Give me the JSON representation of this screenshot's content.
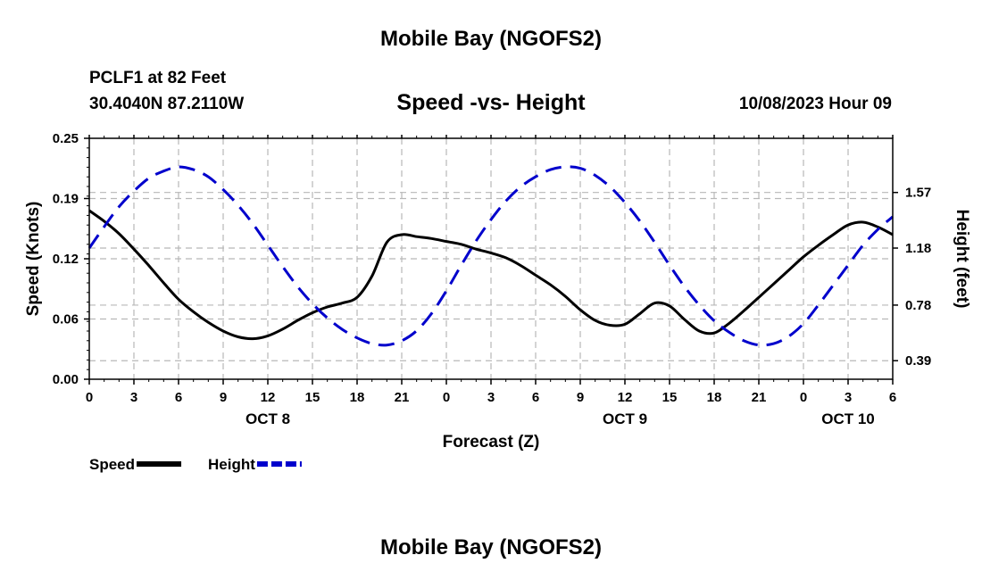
{
  "header": {
    "title": "Mobile Bay (NGOFS2)",
    "station": "PCLF1 at 82 Feet",
    "coords": "30.4040N  87.2110W",
    "date": "10/08/2023 Hour 09",
    "footer_title": "Mobile Bay (NGOFS2)"
  },
  "chart_data": {
    "type": "line",
    "subtitle": "Speed -vs- Height",
    "xlabel": "Forecast (Z)",
    "ylabel_left": "Speed (Knots)",
    "ylabel_right": "Height (feet)",
    "x_range_hours": [
      0,
      54
    ],
    "x_tick_labels": [
      "0",
      "3",
      "6",
      "9",
      "12",
      "15",
      "18",
      "21",
      "0",
      "3",
      "6",
      "9",
      "12",
      "15",
      "18",
      "21",
      "0",
      "3",
      "6"
    ],
    "day_labels": [
      {
        "label": "OCT 8",
        "hour": 12
      },
      {
        "label": "OCT 9",
        "hour": 36
      },
      {
        "label": "OCT 10",
        "hour": 51
      }
    ],
    "ylim_left": [
      0,
      0.25
    ],
    "yticks_left": [
      "0.00",
      "0.06",
      "0.12",
      "0.19",
      "0.25"
    ],
    "yticks_left_values": [
      0,
      0.0625,
      0.125,
      0.1875,
      0.25
    ],
    "ylim_right": [
      0.26,
      1.95
    ],
    "yticks_right": [
      "0.39",
      "0.78",
      "1.18",
      "1.57"
    ],
    "yticks_right_values": [
      0.39,
      0.78,
      1.18,
      1.57
    ],
    "grid": true,
    "series": [
      {
        "name": "Speed",
        "color": "#000000",
        "dash": "solid",
        "axis": "left",
        "x": [
          0,
          1,
          2,
          3,
          4,
          5,
          6,
          7,
          8,
          9,
          10,
          11,
          12,
          13,
          14,
          15,
          16,
          17,
          18,
          19,
          20,
          21,
          22,
          23,
          24,
          25,
          26,
          27,
          28,
          29,
          30,
          31,
          32,
          33,
          34,
          35,
          36,
          37,
          38,
          39,
          40,
          41,
          42,
          43,
          44,
          45,
          46,
          47,
          48,
          49,
          50,
          51,
          52,
          53,
          54
        ],
        "values": [
          0.175,
          0.164,
          0.151,
          0.135,
          0.118,
          0.1,
          0.083,
          0.07,
          0.059,
          0.05,
          0.044,
          0.042,
          0.045,
          0.052,
          0.061,
          0.069,
          0.075,
          0.079,
          0.085,
          0.107,
          0.142,
          0.15,
          0.148,
          0.146,
          0.143,
          0.14,
          0.135,
          0.131,
          0.126,
          0.118,
          0.108,
          0.098,
          0.086,
          0.072,
          0.061,
          0.056,
          0.057,
          0.068,
          0.079,
          0.076,
          0.062,
          0.05,
          0.048,
          0.058,
          0.071,
          0.085,
          0.099,
          0.113,
          0.127,
          0.139,
          0.15,
          0.16,
          0.163,
          0.158,
          0.15
        ]
      },
      {
        "name": "Height",
        "color": "#0000cc",
        "dash": "dashed",
        "axis": "right",
        "x": [
          0,
          1,
          2,
          3,
          4,
          5,
          6,
          7,
          8,
          9,
          10,
          11,
          12,
          13,
          14,
          15,
          16,
          17,
          18,
          19,
          20,
          21,
          22,
          23,
          24,
          25,
          26,
          27,
          28,
          29,
          30,
          31,
          32,
          33,
          34,
          35,
          36,
          37,
          38,
          39,
          40,
          41,
          42,
          43,
          44,
          45,
          46,
          47,
          48,
          49,
          50,
          51,
          52,
          53,
          54
        ],
        "values": [
          1.18,
          1.33,
          1.47,
          1.58,
          1.67,
          1.72,
          1.75,
          1.73,
          1.68,
          1.59,
          1.48,
          1.35,
          1.2,
          1.05,
          0.91,
          0.79,
          0.69,
          0.61,
          0.55,
          0.51,
          0.5,
          0.53,
          0.6,
          0.72,
          0.88,
          1.06,
          1.23,
          1.38,
          1.51,
          1.61,
          1.68,
          1.73,
          1.75,
          1.74,
          1.69,
          1.61,
          1.5,
          1.37,
          1.22,
          1.06,
          0.91,
          0.78,
          0.67,
          0.59,
          0.53,
          0.5,
          0.51,
          0.56,
          0.65,
          0.78,
          0.92,
          1.06,
          1.2,
          1.31,
          1.4
        ]
      }
    ]
  }
}
